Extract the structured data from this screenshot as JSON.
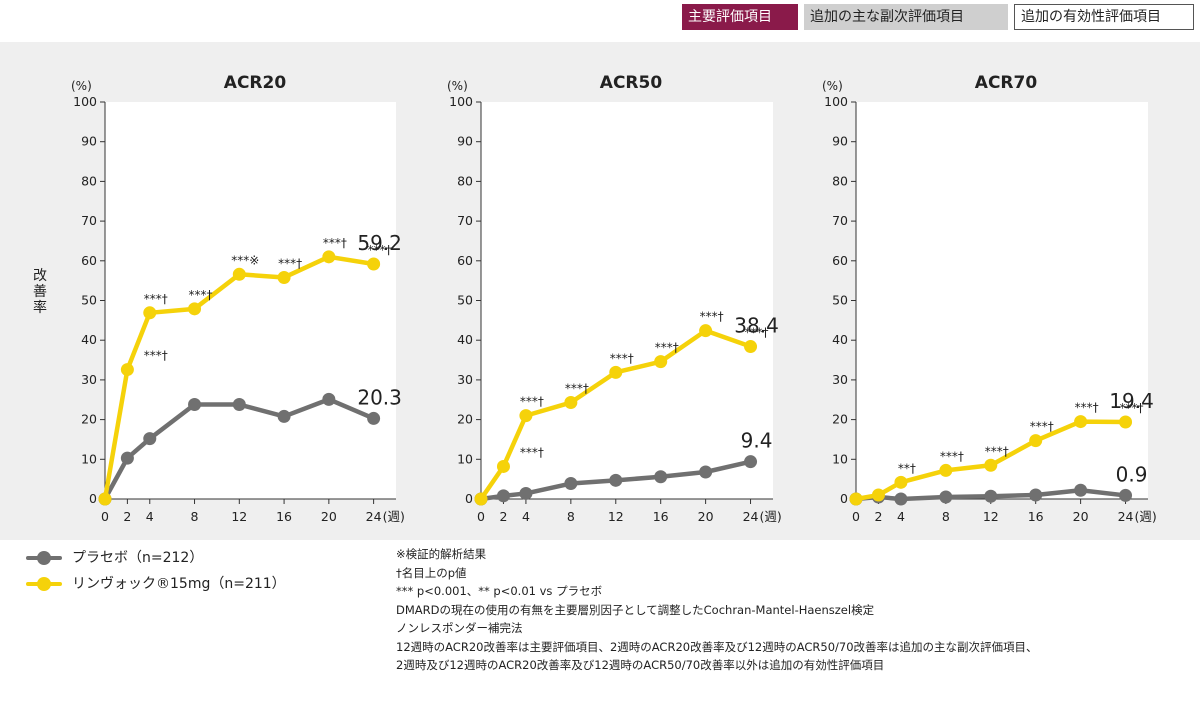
{
  "tags": {
    "primary": "主要評価項目",
    "secondary": "追加の主な副次評価項目",
    "other": "追加の有効性評価項目"
  },
  "y_axis_label": "改善率",
  "legend": [
    {
      "label": "プラセボ（n=212）",
      "color": "#707070"
    },
    {
      "label": "リンヴォック®15mg（n=211）",
      "color": "#f5d20a"
    }
  ],
  "notes": [
    "※検証的解析結果",
    "†名目上のp値",
    "*** p<0.001、** p<0.01 vs プラセボ",
    "DMARDの現在の使用の有無を主要層別因子として調整したCochran-Mantel-Haenszel検定",
    "ノンレスポンダー補完法",
    "12週時のACR20改善率は主要評価項目、2週時のACR20改善率及び12週時のACR50/70改善率は追加の主な副次評価項目、",
    "2週時及び12週時のACR20改善率及び12週時のACR50/70改善率以外は追加の有効性評価項目"
  ],
  "colors": {
    "placebo": "#707070",
    "drug": "#f5d20a",
    "primary_tag": "#8a1a4a"
  },
  "chart_data": [
    {
      "type": "line",
      "title": "ACR20",
      "yunit": "(%)",
      "xunit": "(週)",
      "ylim": [
        0,
        100
      ],
      "yticks": [
        0,
        10,
        20,
        30,
        40,
        50,
        60,
        70,
        80,
        90,
        100
      ],
      "xticks": [
        0,
        2,
        4,
        8,
        12,
        16,
        20,
        24
      ],
      "series": [
        {
          "key": "placebo",
          "x": [
            0,
            2,
            4,
            8,
            12,
            16,
            20,
            24
          ],
          "y": [
            0,
            10.3,
            15.2,
            23.8,
            23.8,
            20.8,
            25.1,
            20.3
          ]
        },
        {
          "key": "drug",
          "x": [
            0,
            2,
            4,
            8,
            12,
            16,
            20,
            24
          ],
          "y": [
            0,
            32.6,
            46.9,
            47.9,
            56.6,
            55.8,
            61.0,
            59.2
          ]
        }
      ],
      "end_labels": {
        "placebo": "20.3",
        "drug": "59.2"
      },
      "annotations": [
        {
          "x": 4,
          "y": 32.6,
          "text": "***†"
        },
        {
          "x": 4,
          "y": 46.9,
          "text": "***†"
        },
        {
          "x": 8,
          "y": 47.9,
          "text": "***†"
        },
        {
          "x": 12,
          "y": 56.6,
          "text": "***※"
        },
        {
          "x": 16,
          "y": 55.8,
          "text": "***†"
        },
        {
          "x": 20,
          "y": 61.0,
          "text": "***†"
        },
        {
          "x": 24,
          "y": 59.2,
          "text": "***†"
        }
      ]
    },
    {
      "type": "line",
      "title": "ACR50",
      "yunit": "(%)",
      "xunit": "(週)",
      "ylim": [
        0,
        100
      ],
      "yticks": [
        0,
        10,
        20,
        30,
        40,
        50,
        60,
        70,
        80,
        90,
        100
      ],
      "xticks": [
        0,
        2,
        4,
        8,
        12,
        16,
        20,
        24
      ],
      "series": [
        {
          "key": "placebo",
          "x": [
            0,
            2,
            4,
            8,
            12,
            16,
            20,
            24
          ],
          "y": [
            0,
            0.8,
            1.4,
            3.9,
            4.7,
            5.6,
            6.8,
            9.4
          ]
        },
        {
          "key": "drug",
          "x": [
            0,
            2,
            4,
            8,
            12,
            16,
            20,
            24
          ],
          "y": [
            0,
            8.2,
            21.0,
            24.3,
            31.9,
            34.6,
            42.4,
            38.4
          ]
        }
      ],
      "end_labels": {
        "placebo": "9.4",
        "drug": "38.4"
      },
      "annotations": [
        {
          "x": 4,
          "y": 8.2,
          "text": "***†"
        },
        {
          "x": 4,
          "y": 21.0,
          "text": "***†"
        },
        {
          "x": 8,
          "y": 24.3,
          "text": "***†"
        },
        {
          "x": 12,
          "y": 31.9,
          "text": "***†"
        },
        {
          "x": 16,
          "y": 34.6,
          "text": "***†"
        },
        {
          "x": 20,
          "y": 42.4,
          "text": "***†"
        },
        {
          "x": 24,
          "y": 38.4,
          "text": "***†"
        }
      ]
    },
    {
      "type": "line",
      "title": "ACR70",
      "yunit": "(%)",
      "xunit": "(週)",
      "ylim": [
        0,
        100
      ],
      "yticks": [
        0,
        10,
        20,
        30,
        40,
        50,
        60,
        70,
        80,
        90,
        100
      ],
      "xticks": [
        0,
        2,
        4,
        8,
        12,
        16,
        20,
        24
      ],
      "series": [
        {
          "key": "placebo",
          "x": [
            0,
            2,
            4,
            8,
            12,
            16,
            20,
            24
          ],
          "y": [
            0,
            0.5,
            0.0,
            0.5,
            0.7,
            1.0,
            2.2,
            0.9
          ]
        },
        {
          "key": "drug",
          "x": [
            0,
            2,
            4,
            8,
            12,
            16,
            20,
            24
          ],
          "y": [
            0,
            1.0,
            4.2,
            7.2,
            8.5,
            14.7,
            19.5,
            19.4
          ]
        }
      ],
      "end_labels": {
        "placebo": "0.9",
        "drug": "19.4"
      },
      "annotations": [
        {
          "x": 4,
          "y": 4.2,
          "text": "**†"
        },
        {
          "x": 8,
          "y": 7.2,
          "text": "***†"
        },
        {
          "x": 12,
          "y": 8.5,
          "text": "***†"
        },
        {
          "x": 16,
          "y": 14.7,
          "text": "***†"
        },
        {
          "x": 20,
          "y": 19.5,
          "text": "***†"
        },
        {
          "x": 24,
          "y": 19.4,
          "text": "***†"
        }
      ]
    }
  ]
}
